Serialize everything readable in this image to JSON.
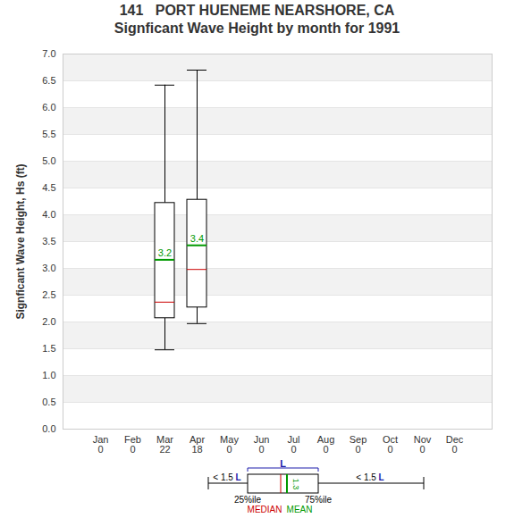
{
  "chart_data": {
    "type": "box",
    "title": "141   PORT HUENEME NEARSHORE, CA",
    "subtitle": "Signficant Wave Height by month for 1991",
    "y_label": "Signficant Wave Height, Hs (ft)",
    "categories": [
      "Jan",
      "Feb",
      "Mar",
      "Apr",
      "May",
      "Jun",
      "Jul",
      "Aug",
      "Sep",
      "Oct",
      "Nov",
      "Dec"
    ],
    "counts": [
      0,
      0,
      22,
      18,
      0,
      0,
      0,
      0,
      0,
      0,
      0,
      0
    ],
    "boxes": [
      {
        "category": "Mar",
        "whisker_low": 1.48,
        "q1": 2.07,
        "median": 2.37,
        "q3": 4.22,
        "whisker_high": 6.42,
        "mean": 3.16,
        "mean_label": "3.2"
      },
      {
        "category": "Apr",
        "whisker_low": 1.97,
        "q1": 2.27,
        "median": 2.98,
        "q3": 4.28,
        "whisker_high": 6.7,
        "mean": 3.43,
        "mean_label": "3.4"
      }
    ],
    "ylim": [
      0,
      7
    ],
    "yticks": [
      {
        "value": 0,
        "label": "0.0"
      },
      0.5,
      {
        "value": 1,
        "label": "1.0"
      },
      1.5,
      {
        "value": 2,
        "label": "2.0"
      },
      2.5,
      {
        "value": 3,
        "label": "3.0"
      },
      3.5,
      {
        "value": 4,
        "label": "4.0"
      },
      4.5,
      {
        "value": 5,
        "label": "5.0"
      },
      5.5,
      {
        "value": 6,
        "label": "6.0"
      },
      6.5,
      {
        "value": 7,
        "label": "7.0"
      }
    ],
    "grid": true,
    "data_labels": true,
    "legend_key": {
      "lower": "< 1.5 L",
      "iqr": "L",
      "upper": "< 1.5 L",
      "q1": "25%ile",
      "q3": "75%ile",
      "median": "MEDIAN",
      "mean": "MEAN",
      "mean_label": "1.3"
    }
  }
}
